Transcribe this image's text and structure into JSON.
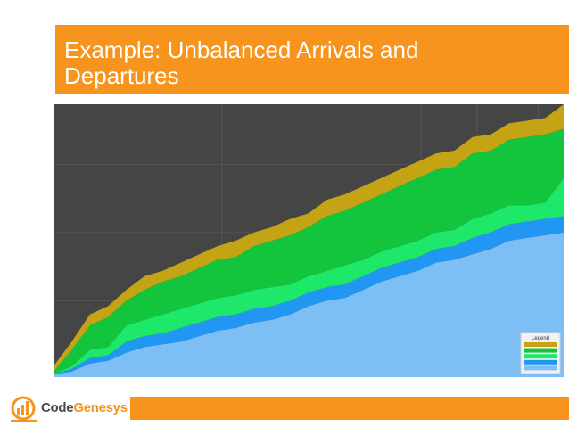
{
  "slide": {
    "title": "Example: Unbalanced Arrivals and Departures"
  },
  "logo": {
    "part1": "Code",
    "part2": "Genesys"
  },
  "colors": {
    "accent": "#F7941D",
    "plot_bg": "#454545",
    "grid": "#555555"
  },
  "chart_data": {
    "type": "area",
    "stacked": true,
    "title": "",
    "xlabel": "",
    "ylabel": "",
    "x": [
      0,
      1,
      2,
      3,
      4,
      5,
      6,
      7,
      8,
      9,
      10,
      11,
      12,
      13,
      14,
      15,
      16,
      17,
      18,
      19,
      20,
      21,
      22,
      23,
      24,
      25,
      26,
      27,
      28
    ],
    "ylim": [
      0,
      100
    ],
    "grid": true,
    "legend": {
      "title": "Legend",
      "position": "bottom-right"
    },
    "series": [
      {
        "color": "#7DBFF5",
        "values": [
          1,
          2,
          5,
          6,
          9,
          11,
          12,
          13,
          15,
          17,
          18,
          20,
          21,
          23,
          26,
          28,
          29,
          32,
          35,
          37,
          39,
          42,
          43,
          45,
          47,
          50,
          51,
          52,
          53
        ]
      },
      {
        "color": "#2196F3",
        "values": [
          0,
          1,
          2,
          2,
          4,
          4,
          4,
          5,
          5,
          5,
          5,
          5,
          5,
          5,
          5,
          5,
          5,
          5,
          5,
          5,
          5,
          5,
          5,
          6,
          6,
          6,
          6,
          6,
          6
        ]
      },
      {
        "color": "#1DE86A",
        "values": [
          0,
          1,
          3,
          3,
          6,
          6,
          7,
          7,
          7,
          7,
          7,
          7,
          7,
          6,
          6,
          6,
          7,
          6,
          6,
          6,
          6,
          6,
          6,
          7,
          7,
          7,
          6,
          6,
          14
        ]
      },
      {
        "color": "#13C43D",
        "values": [
          1,
          6,
          9,
          11,
          9,
          11,
          12,
          12,
          13,
          14,
          14,
          16,
          17,
          18,
          18,
          20,
          20,
          21,
          21,
          22,
          23,
          23,
          23,
          24,
          23,
          24,
          25,
          25,
          18
        ]
      },
      {
        "color": "#C4A415",
        "values": [
          2,
          3,
          4,
          4,
          4,
          5,
          4,
          5,
          5,
          5,
          6,
          5,
          5,
          6,
          5,
          6,
          6,
          6,
          6,
          6,
          6,
          6,
          6,
          6,
          6,
          6,
          6,
          6,
          9
        ]
      }
    ]
  }
}
